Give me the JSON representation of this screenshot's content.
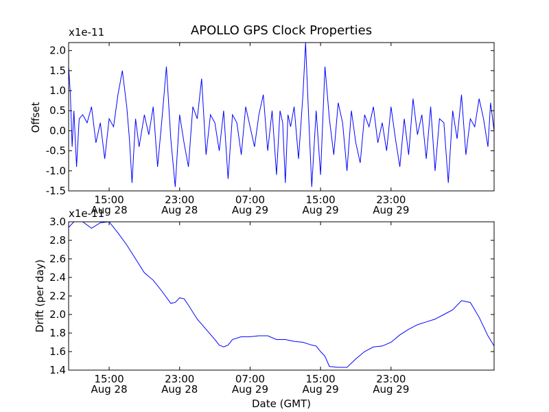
{
  "chart_data": [
    {
      "type": "line",
      "title": "APOLLO GPS Clock Properties",
      "ylabel": "Offset",
      "xlabel": "",
      "y_scale_label": "x1e-11",
      "ylim": [
        -1.5,
        2.2
      ],
      "xlim_hours": [
        10.4,
        58.7
      ],
      "x_tick_hours": [
        15,
        23,
        31,
        39,
        47
      ],
      "x_tick_labels": [
        {
          "time": "15:00",
          "date": "Aug 28"
        },
        {
          "time": "23:00",
          "date": "Aug 28"
        },
        {
          "time": "07:00",
          "date": "Aug 29"
        },
        {
          "time": "15:00",
          "date": "Aug 29"
        },
        {
          "time": "23:00",
          "date": "Aug 29"
        }
      ],
      "y_ticks": [
        -1.5,
        -1.0,
        -0.5,
        0.0,
        0.5,
        1.0,
        1.5,
        2.0
      ],
      "y_tick_labels": [
        "-1.5",
        "-1.0",
        "-0.5",
        "0.0",
        "0.5",
        "1.0",
        "1.5",
        "2.0"
      ],
      "series": [
        {
          "name": "Offset",
          "color": "#0000ff",
          "x_hours": [
            10.4,
            10.6,
            10.8,
            11.0,
            11.3,
            11.6,
            12.0,
            12.5,
            13.0,
            13.5,
            14.0,
            14.5,
            15.0,
            15.5,
            16.0,
            16.5,
            17.0,
            17.3,
            17.6,
            18.0,
            18.4,
            19.0,
            19.5,
            20.0,
            20.5,
            21.0,
            21.5,
            22.0,
            22.5,
            23.0,
            23.5,
            24.0,
            24.5,
            25.0,
            25.5,
            26.0,
            26.5,
            27.0,
            27.5,
            28.0,
            28.5,
            29.0,
            29.5,
            30.0,
            30.5,
            31.0,
            31.5,
            32.0,
            32.5,
            33.0,
            33.5,
            34.0,
            34.4,
            34.7,
            35.0,
            35.3,
            35.6,
            36.0,
            36.5,
            37.0,
            37.3,
            37.6,
            38.0,
            38.5,
            39.0,
            39.5,
            40.0,
            40.5,
            41.0,
            41.5,
            42.0,
            42.5,
            43.0,
            43.5,
            44.0,
            44.5,
            45.0,
            45.5,
            46.0,
            46.5,
            47.0,
            47.5,
            48.0,
            48.5,
            49.0,
            49.5,
            50.0,
            50.5,
            51.0,
            51.5,
            52.0,
            52.5,
            53.0,
            53.5,
            54.0,
            54.5,
            55.0,
            55.5,
            56.0,
            56.5,
            57.0,
            57.5,
            58.0,
            58.3,
            58.7
          ],
          "values": [
            1.6,
            0.9,
            -0.4,
            0.5,
            -0.9,
            0.3,
            0.4,
            0.2,
            0.6,
            -0.3,
            0.2,
            -0.7,
            0.3,
            0.1,
            0.9,
            1.5,
            0.6,
            -0.2,
            -1.3,
            0.3,
            -0.4,
            0.4,
            -0.1,
            0.6,
            -0.9,
            0.3,
            1.6,
            -0.2,
            -1.4,
            0.4,
            -0.3,
            -0.9,
            0.6,
            0.3,
            1.3,
            -0.6,
            0.4,
            0.2,
            -0.5,
            0.5,
            -1.2,
            0.4,
            0.2,
            -0.6,
            0.6,
            0.1,
            -0.4,
            0.4,
            0.9,
            -0.5,
            0.5,
            -1.1,
            0.5,
            0.2,
            -1.3,
            0.4,
            0.1,
            0.6,
            -0.7,
            0.9,
            2.2,
            0.6,
            -1.4,
            0.5,
            -1.1,
            1.6,
            0.3,
            -0.6,
            0.7,
            0.2,
            -1.0,
            0.5,
            -0.3,
            -0.8,
            0.4,
            0.1,
            0.6,
            -0.3,
            0.2,
            -0.5,
            0.6,
            -0.2,
            -0.9,
            0.3,
            -0.6,
            0.8,
            -0.1,
            0.4,
            -0.7,
            0.6,
            -1.0,
            0.3,
            0.2,
            -1.3,
            0.5,
            -0.2,
            0.9,
            -0.6,
            0.3,
            0.1,
            0.8,
            0.3,
            -0.4,
            0.7,
            0.0
          ]
        }
      ]
    },
    {
      "type": "line",
      "title": "",
      "ylabel": "Drift (per day)",
      "xlabel": "Date (GMT)",
      "y_scale_label": "x1e-11",
      "ylim": [
        1.4,
        3.0
      ],
      "xlim_hours": [
        10.4,
        58.7
      ],
      "x_tick_hours": [
        15,
        23,
        31,
        39,
        47
      ],
      "x_tick_labels": [
        {
          "time": "15:00",
          "date": "Aug 28"
        },
        {
          "time": "23:00",
          "date": "Aug 28"
        },
        {
          "time": "07:00",
          "date": "Aug 29"
        },
        {
          "time": "15:00",
          "date": "Aug 29"
        },
        {
          "time": "23:00",
          "date": "Aug 29"
        }
      ],
      "y_ticks": [
        1.4,
        1.6,
        1.8,
        2.0,
        2.2,
        2.4,
        2.6,
        2.8,
        3.0
      ],
      "y_tick_labels": [
        "1.4",
        "1.6",
        "1.8",
        "2.0",
        "2.2",
        "2.4",
        "2.6",
        "2.8",
        "3.0"
      ],
      "series": [
        {
          "name": "Drift",
          "color": "#0000ff",
          "x_hours": [
            10.4,
            11.0,
            12.0,
            13.0,
            14.0,
            15.0,
            16.0,
            17.0,
            18.0,
            19.0,
            20.0,
            21.0,
            22.0,
            22.5,
            23.0,
            23.5,
            24.0,
            25.0,
            26.0,
            27.0,
            27.5,
            28.0,
            28.5,
            29.0,
            30.0,
            31.0,
            32.0,
            33.0,
            34.0,
            35.0,
            36.0,
            37.0,
            38.0,
            38.5,
            39.0,
            39.5,
            40.0,
            41.0,
            42.0,
            43.0,
            44.0,
            45.0,
            46.0,
            47.0,
            48.0,
            49.0,
            50.0,
            51.0,
            52.0,
            53.0,
            54.0,
            55.0,
            56.0,
            57.0,
            58.0,
            58.7
          ],
          "values": [
            2.94,
            3.0,
            3.0,
            2.93,
            2.99,
            3.0,
            2.88,
            2.75,
            2.6,
            2.45,
            2.37,
            2.25,
            2.12,
            2.13,
            2.18,
            2.17,
            2.1,
            1.95,
            1.84,
            1.73,
            1.67,
            1.65,
            1.67,
            1.73,
            1.76,
            1.76,
            1.77,
            1.77,
            1.73,
            1.73,
            1.71,
            1.7,
            1.67,
            1.66,
            1.6,
            1.55,
            1.44,
            1.43,
            1.43,
            1.52,
            1.6,
            1.65,
            1.66,
            1.7,
            1.78,
            1.84,
            1.89,
            1.92,
            1.95,
            2.0,
            2.05,
            2.15,
            2.13,
            1.97,
            1.77,
            1.66
          ]
        }
      ]
    }
  ]
}
